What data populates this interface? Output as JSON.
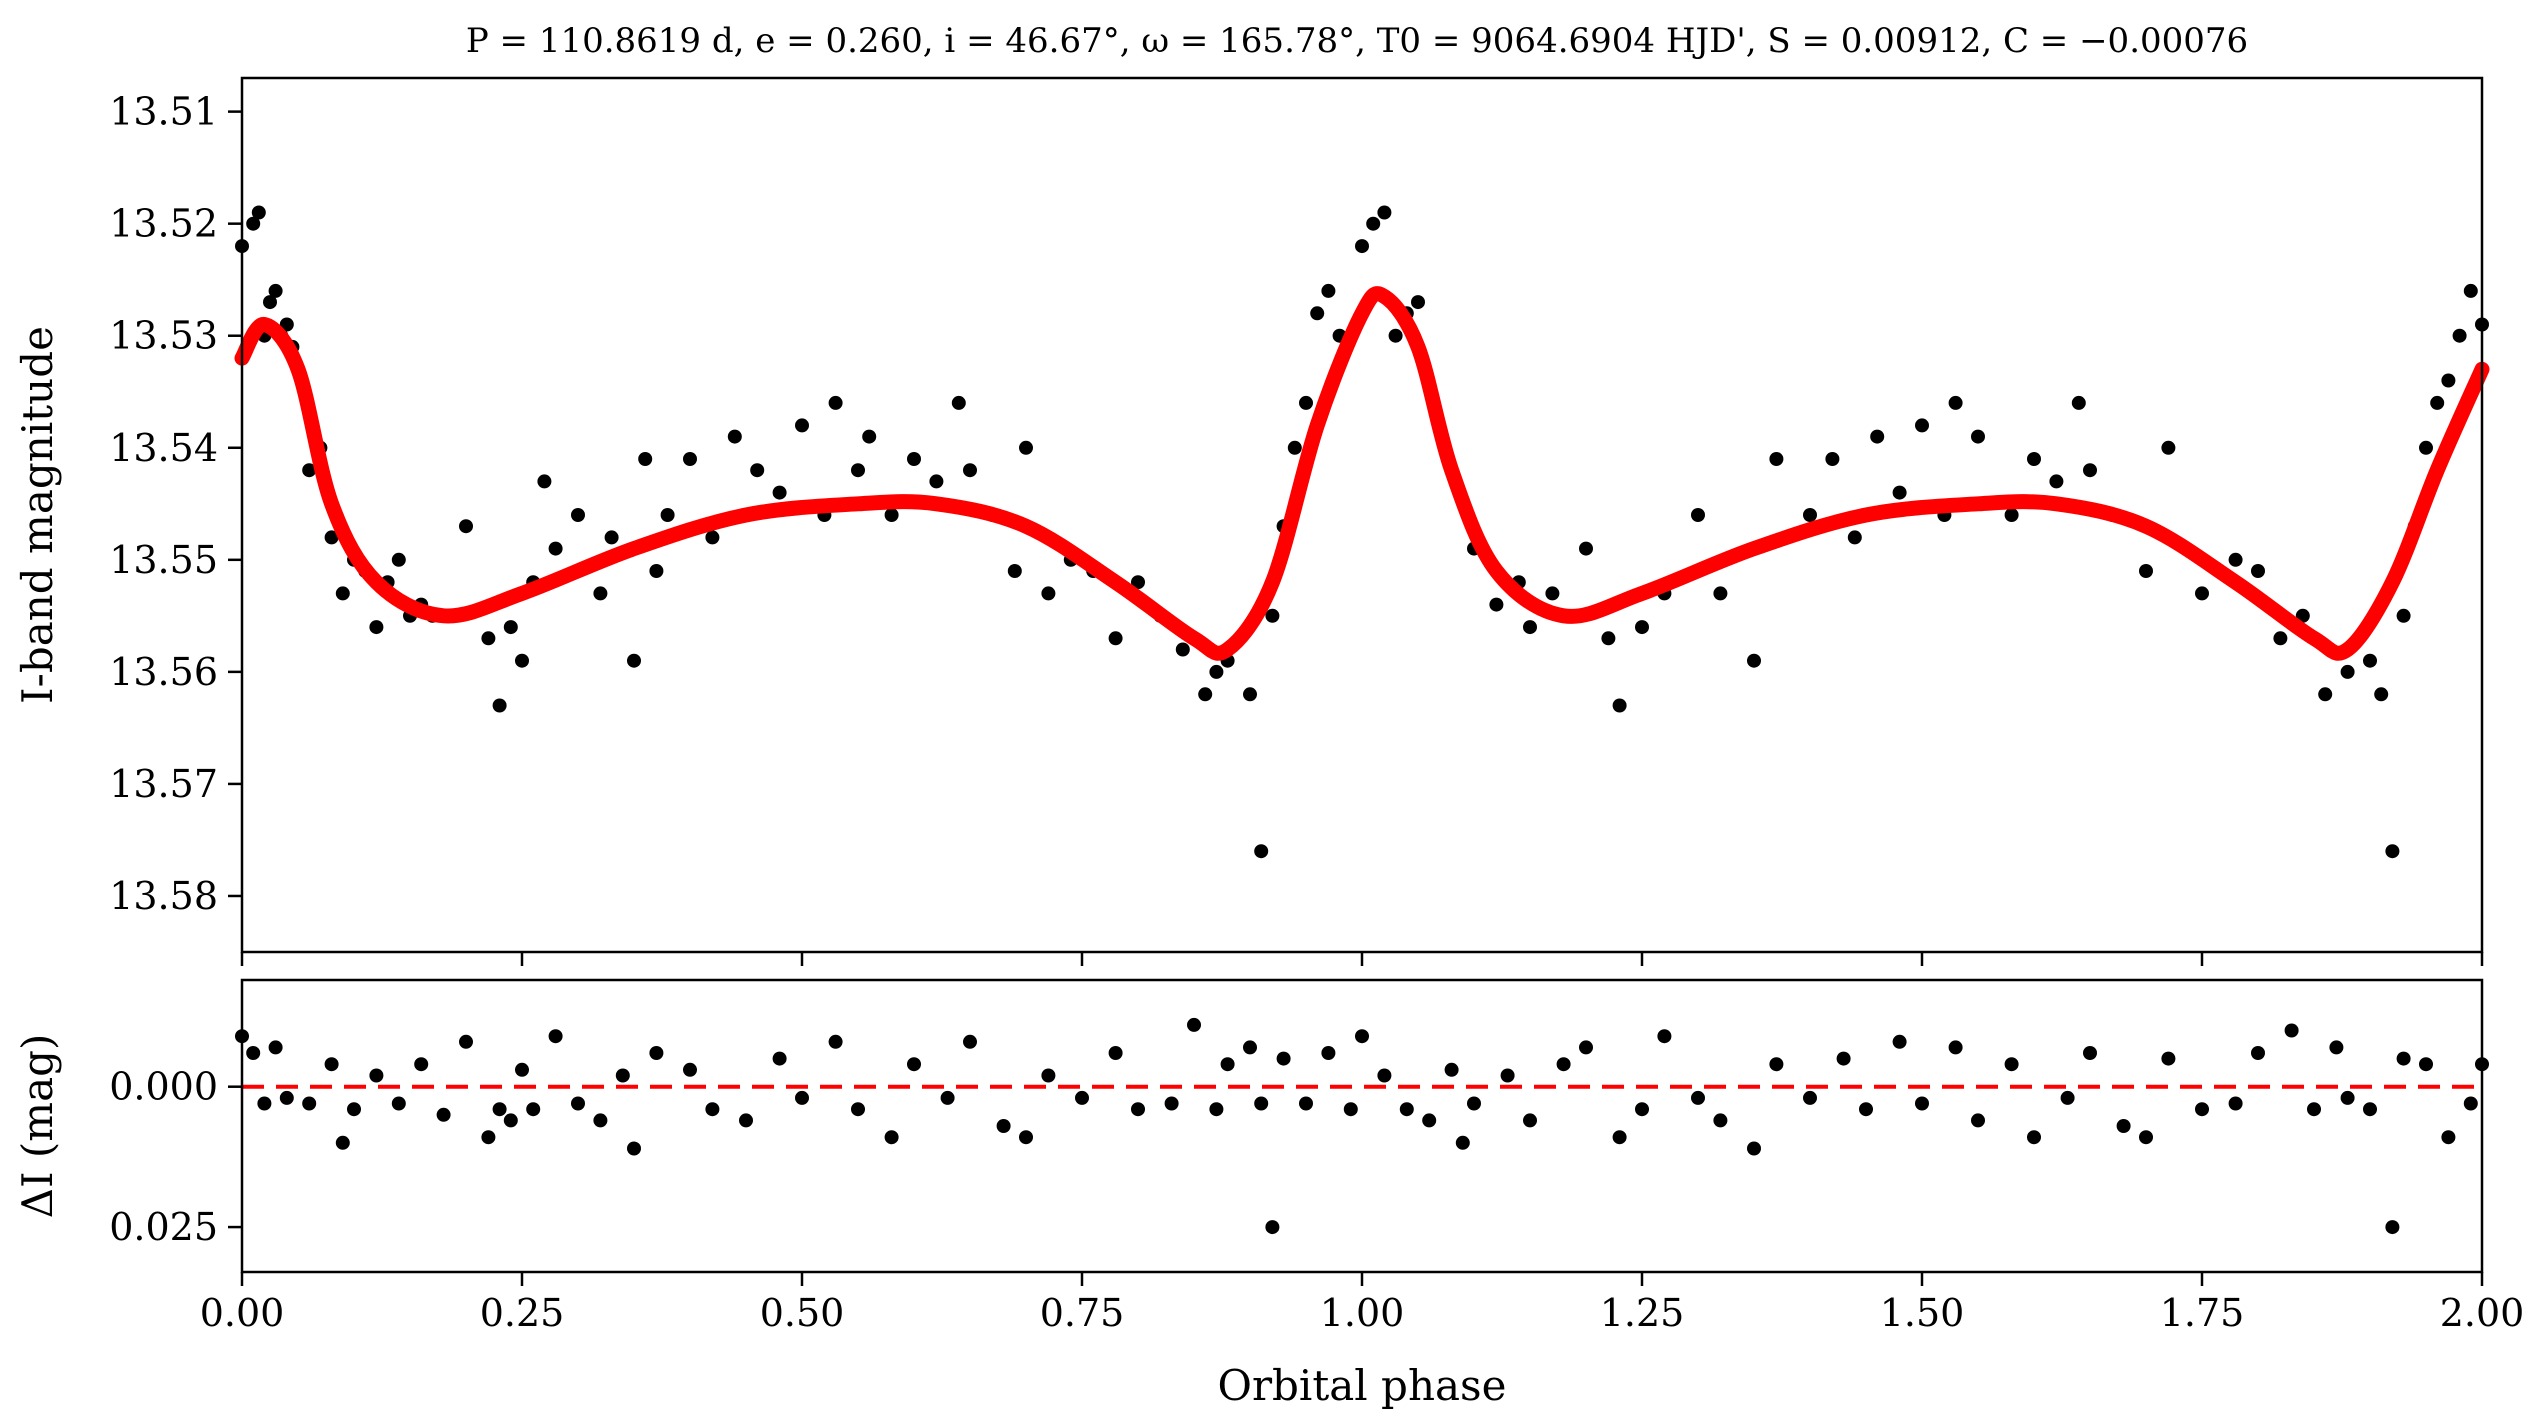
{
  "chart_data": [
    {
      "type": "scatter",
      "panel": "light-curve",
      "title": "P = 110.8619 d, e = 0.260, i = 46.67°, ω = 165.78°, T0 = 9064.6904 HJD', S = 0.00912, C = −0.00076",
      "xlabel": "",
      "ylabel": "I-band magnitude",
      "xlim": [
        0.0,
        2.0
      ],
      "ylim": [
        13.585,
        13.507
      ],
      "y_inverted": true,
      "yticks": [
        "13.51",
        "13.52",
        "13.53",
        "13.54",
        "13.55",
        "13.56",
        "13.57",
        "13.58"
      ],
      "colors": {
        "points": "#000000",
        "model": "#ff0000"
      },
      "series": [
        {
          "kind": "points",
          "x": [
            0.0,
            0.01,
            0.02,
            0.03,
            0.015,
            0.025,
            0.035,
            0.04,
            0.045,
            0.06,
            0.07,
            0.08,
            0.09,
            0.1,
            0.11,
            0.12,
            0.13,
            0.14,
            0.15,
            0.16,
            0.17,
            0.2,
            0.22,
            0.23,
            0.24,
            0.25,
            0.26,
            0.27,
            0.28,
            0.3,
            0.32,
            0.33,
            0.35,
            0.36,
            0.37,
            0.38,
            0.4,
            0.42,
            0.44,
            0.46,
            0.48,
            0.5,
            0.52,
            0.53,
            0.55,
            0.56,
            0.58,
            0.6,
            0.62,
            0.64,
            0.65,
            0.67,
            0.69,
            0.7,
            0.72,
            0.74,
            0.76,
            0.78,
            0.8,
            0.82,
            0.84,
            0.86,
            0.87,
            0.88,
            0.9,
            0.91,
            0.92,
            0.93,
            0.94,
            0.95,
            0.96,
            0.97,
            0.98,
            1.0,
            1.01,
            1.02,
            1.03,
            1.04,
            1.05
          ],
          "y": [
            13.522,
            13.52,
            13.53,
            13.526,
            13.519,
            13.527,
            13.53,
            13.529,
            13.531,
            13.542,
            13.54,
            13.548,
            13.553,
            13.55,
            13.551,
            13.556,
            13.552,
            13.55,
            13.555,
            13.554,
            13.555,
            13.547,
            13.557,
            13.563,
            13.556,
            13.559,
            13.552,
            13.543,
            13.549,
            13.546,
            13.553,
            13.548,
            13.559,
            13.541,
            13.551,
            13.546,
            13.541,
            13.548,
            13.539,
            13.542,
            13.544,
            13.538,
            13.546,
            13.536,
            13.542,
            13.539,
            13.546,
            13.541,
            13.543,
            13.536,
            13.542,
            13.546,
            13.551,
            13.54,
            13.553,
            13.55,
            13.551,
            13.557,
            13.552,
            13.555,
            13.558,
            13.562,
            13.56,
            13.559,
            13.562,
            13.576,
            13.555,
            13.547,
            13.54,
            13.536,
            13.528,
            13.526,
            13.53,
            13.522,
            13.52,
            13.519,
            13.53,
            13.528,
            13.527
          ]
        },
        {
          "kind": "points",
          "x": [
            1.1,
            1.12,
            1.14,
            1.15,
            1.17,
            1.2,
            1.22,
            1.23,
            1.25,
            1.27,
            1.3,
            1.32,
            1.35,
            1.37,
            1.4,
            1.42,
            1.44,
            1.46,
            1.48,
            1.5,
            1.52,
            1.53,
            1.55,
            1.58,
            1.6,
            1.62,
            1.64,
            1.65,
            1.67,
            1.7,
            1.72,
            1.75,
            1.78,
            1.8,
            1.82,
            1.84,
            1.86,
            1.88,
            1.9,
            1.91,
            1.92,
            1.93,
            1.94,
            1.95,
            1.96,
            1.97,
            1.98,
            1.99,
            2.0
          ],
          "y": [
            13.549,
            13.554,
            13.552,
            13.556,
            13.553,
            13.549,
            13.557,
            13.563,
            13.556,
            13.553,
            13.546,
            13.553,
            13.559,
            13.541,
            13.546,
            13.541,
            13.548,
            13.539,
            13.544,
            13.538,
            13.546,
            13.536,
            13.539,
            13.546,
            13.541,
            13.543,
            13.536,
            13.542,
            13.546,
            13.551,
            13.54,
            13.553,
            13.55,
            13.551,
            13.557,
            13.555,
            13.562,
            13.56,
            13.559,
            13.562,
            13.576,
            13.555,
            13.547,
            13.54,
            13.536,
            13.534,
            13.53,
            13.526,
            13.529
          ]
        },
        {
          "kind": "model-curve",
          "x": [
            0.0,
            0.02,
            0.05,
            0.08,
            0.12,
            0.18,
            0.25,
            0.35,
            0.45,
            0.55,
            0.62,
            0.7,
            0.78,
            0.85,
            0.88,
            0.92,
            0.96,
            1.0,
            1.02,
            1.05,
            1.08,
            1.12,
            1.18,
            1.25,
            1.35,
            1.45,
            1.55,
            1.62,
            1.7,
            1.78,
            1.85,
            1.88,
            1.92,
            1.96,
            2.0
          ],
          "y": [
            13.532,
            13.529,
            13.533,
            13.545,
            13.552,
            13.555,
            13.553,
            13.549,
            13.546,
            13.545,
            13.545,
            13.547,
            13.552,
            13.557,
            13.558,
            13.552,
            13.538,
            13.528,
            13.5265,
            13.531,
            13.542,
            13.551,
            13.555,
            13.553,
            13.549,
            13.546,
            13.545,
            13.545,
            13.547,
            13.552,
            13.557,
            13.558,
            13.552,
            13.542,
            13.533
          ]
        }
      ]
    },
    {
      "type": "scatter",
      "panel": "residuals",
      "xlabel": "Orbital phase",
      "ylabel": "ΔI (mag)",
      "xlim": [
        0.0,
        2.0
      ],
      "ylim": [
        0.033,
        -0.019
      ],
      "y_inverted": true,
      "xticks": [
        "0.00",
        "0.25",
        "0.50",
        "0.75",
        "1.00",
        "1.25",
        "1.50",
        "1.75",
        "2.00"
      ],
      "yticks": [
        "0.000",
        "0.025"
      ],
      "colors": {
        "points": "#000000",
        "zero_line": "#ff0000"
      },
      "series": [
        {
          "kind": "points",
          "x": [
            0.0,
            0.01,
            0.02,
            0.03,
            0.04,
            0.06,
            0.08,
            0.09,
            0.1,
            0.12,
            0.14,
            0.16,
            0.18,
            0.2,
            0.22,
            0.23,
            0.24,
            0.25,
            0.26,
            0.28,
            0.3,
            0.32,
            0.34,
            0.35,
            0.37,
            0.4,
            0.42,
            0.45,
            0.48,
            0.5,
            0.53,
            0.55,
            0.58,
            0.6,
            0.63,
            0.65,
            0.68,
            0.7,
            0.72,
            0.75,
            0.78,
            0.8,
            0.83,
            0.85,
            0.87,
            0.88,
            0.9,
            0.91,
            0.92,
            0.93,
            0.95,
            0.97,
            0.99,
            1.0,
            1.02,
            1.04,
            1.06,
            1.08,
            1.09,
            1.1,
            1.13,
            1.15,
            1.18,
            1.2,
            1.23,
            1.25,
            1.27,
            1.3,
            1.32,
            1.35,
            1.37,
            1.4,
            1.43,
            1.45,
            1.48,
            1.5,
            1.53,
            1.55,
            1.58,
            1.6,
            1.63,
            1.65,
            1.68,
            1.7,
            1.72,
            1.75,
            1.78,
            1.8,
            1.83,
            1.85,
            1.87,
            1.88,
            1.9,
            1.92,
            1.93,
            1.95,
            1.97,
            1.99,
            2.0
          ],
          "y": [
            -0.009,
            -0.006,
            0.003,
            -0.007,
            0.002,
            0.003,
            -0.004,
            0.01,
            0.004,
            -0.002,
            0.003,
            -0.004,
            0.005,
            -0.008,
            0.009,
            0.004,
            0.006,
            -0.003,
            0.004,
            -0.009,
            0.003,
            0.006,
            -0.002,
            0.011,
            -0.006,
            -0.003,
            0.004,
            0.006,
            -0.005,
            0.002,
            -0.008,
            0.004,
            0.009,
            -0.004,
            0.002,
            -0.008,
            0.007,
            0.009,
            -0.002,
            0.002,
            -0.006,
            0.004,
            0.003,
            -0.011,
            0.004,
            -0.004,
            -0.007,
            0.003,
            0.025,
            -0.005,
            0.003,
            -0.006,
            0.004,
            -0.009,
            -0.002,
            0.004,
            0.006,
            -0.003,
            0.01,
            0.003,
            -0.002,
            0.006,
            -0.004,
            -0.007,
            0.009,
            0.004,
            -0.009,
            0.002,
            0.006,
            0.011,
            -0.004,
            0.002,
            -0.005,
            0.004,
            -0.008,
            0.003,
            -0.007,
            0.006,
            -0.004,
            0.009,
            0.002,
            -0.006,
            0.007,
            0.009,
            -0.005,
            0.004,
            0.003,
            -0.006,
            -0.01,
            0.004,
            -0.007,
            0.002,
            0.004,
            0.025,
            -0.005,
            -0.004,
            0.009,
            0.003,
            -0.004
          ]
        }
      ]
    }
  ]
}
